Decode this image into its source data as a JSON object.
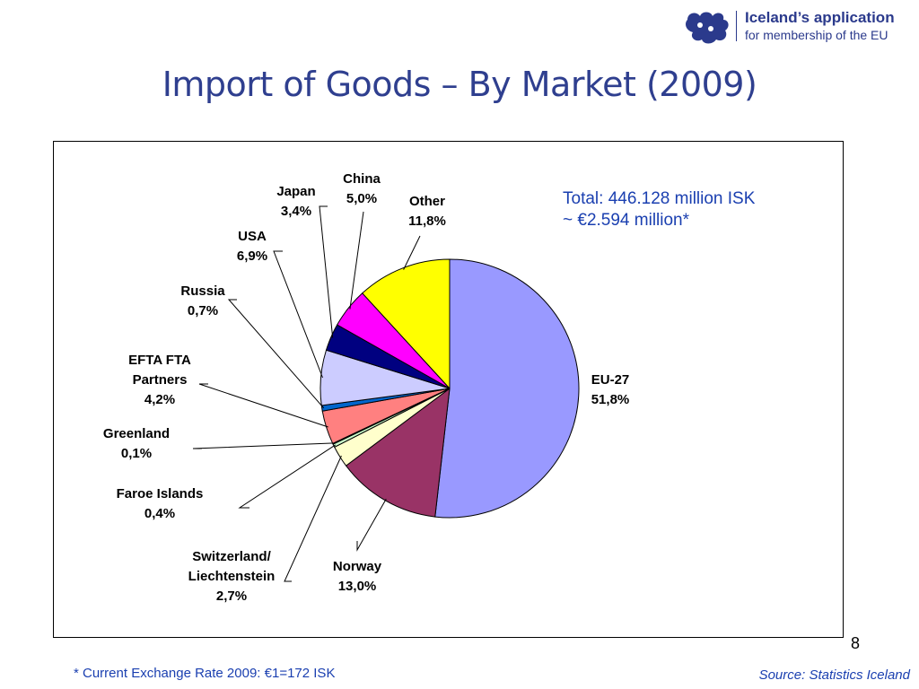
{
  "header": {
    "logo_line1": "Iceland’s application",
    "logo_line2": "for membership of the EU",
    "logo_icon": "iceland-puzzle-logo-icon",
    "title": "Import of Goods – By Market (2009)"
  },
  "chart_data": {
    "type": "pie",
    "title": "",
    "slices": [
      {
        "name": "EU-27",
        "value": 51.8,
        "label": "51,8%",
        "color": "#9999ff"
      },
      {
        "name": "Norway",
        "value": 13.0,
        "label": "13,0%",
        "color": "#993366"
      },
      {
        "name": "Switzerland/ Liechtenstein",
        "value": 2.7,
        "label": "2,7%",
        "color": "#ffffcc"
      },
      {
        "name": "Faroe Islands",
        "value": 0.4,
        "label": "0,4%",
        "color": "#ccffcc"
      },
      {
        "name": "Greenland",
        "value": 0.1,
        "label": "0,1%",
        "color": "#666699"
      },
      {
        "name": "EFTA FTA Partners",
        "value": 4.2,
        "label": "4,2%",
        "color": "#ff8080"
      },
      {
        "name": "Russia",
        "value": 0.7,
        "label": "0,7%",
        "color": "#0066cc"
      },
      {
        "name": "USA",
        "value": 6.9,
        "label": "6,9%",
        "color": "#ccccff"
      },
      {
        "name": "Japan",
        "value": 3.4,
        "label": "3,4%",
        "color": "#000080"
      },
      {
        "name": "China",
        "value": 5.0,
        "label": "5,0%",
        "color": "#ff00ff"
      },
      {
        "name": "Other",
        "value": 11.8,
        "label": "11,8%",
        "color": "#ffff00"
      }
    ]
  },
  "annotation": {
    "total_line1": "Total: 446.128 million ISK",
    "total_line2": "~ €2.594 million*"
  },
  "footer": {
    "page_number": "8",
    "footnote": "* Current Exchange Rate 2009: €1=172 ISK",
    "source": "Source: Statistics Iceland"
  }
}
